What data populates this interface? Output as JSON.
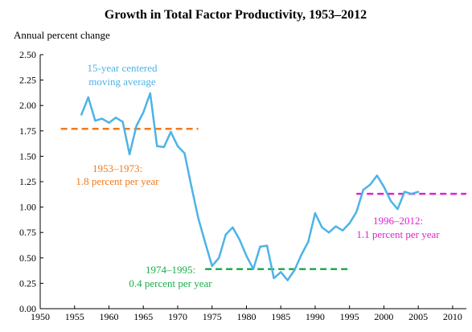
{
  "chart_data": {
    "type": "line",
    "title": "Growth in Total Factor Productivity, 1953–2012",
    "ylabel": "Annual percent change",
    "xlabel": "",
    "xlim": [
      1950,
      2012
    ],
    "ylim": [
      0,
      2.5
    ],
    "xticks": [
      "1950",
      "1955",
      "1960",
      "1965",
      "1970",
      "1975",
      "1980",
      "1985",
      "1990",
      "1995",
      "2000",
      "2005",
      "2010"
    ],
    "yticks": [
      "0.00",
      "0.25",
      "0.50",
      "0.75",
      "1.00",
      "1.25",
      "1.50",
      "1.75",
      "2.00",
      "2.25",
      "2.50"
    ],
    "grid": false,
    "series": [
      {
        "name": "15-year centered moving average",
        "color": "#4db3e6",
        "x": [
          1956,
          1957,
          1958,
          1959,
          1960,
          1961,
          1962,
          1963,
          1964,
          1965,
          1966,
          1967,
          1968,
          1969,
          1970,
          1971,
          1972,
          1973,
          1974,
          1975,
          1976,
          1977,
          1978,
          1979,
          1980,
          1981,
          1982,
          1983,
          1984,
          1985,
          1986,
          1987,
          1988,
          1989,
          1990,
          1991,
          1992,
          1993,
          1994,
          1995,
          1996,
          1997,
          1998,
          1999,
          2000,
          2001,
          2002,
          2003,
          2004,
          2005
        ],
        "y": [
          1.91,
          2.08,
          1.85,
          1.87,
          1.83,
          1.88,
          1.84,
          1.52,
          1.8,
          1.93,
          2.12,
          1.6,
          1.59,
          1.74,
          1.6,
          1.53,
          1.2,
          0.89,
          0.65,
          0.42,
          0.5,
          0.73,
          0.8,
          0.68,
          0.52,
          0.39,
          0.61,
          0.62,
          0.3,
          0.36,
          0.28,
          0.38,
          0.53,
          0.66,
          0.94,
          0.8,
          0.75,
          0.81,
          0.77,
          0.84,
          0.95,
          1.17,
          1.22,
          1.31,
          1.2,
          1.06,
          0.98,
          1.15,
          1.13,
          1.15
        ]
      }
    ],
    "reference_lines": [
      {
        "label_line1": "1953–1973:",
        "label_line2": "1.8 percent per year",
        "value": 1.77,
        "x_start": 1953,
        "x_end": 1973,
        "color": "#f07a1a"
      },
      {
        "label_line1": "1974–1995:",
        "label_line2": "0.4 percent per year",
        "value": 0.39,
        "x_start": 1974,
        "x_end": 1995,
        "color": "#1aae4a"
      },
      {
        "label_line1": "1996–2012:",
        "label_line2": "1.1 percent per year",
        "value": 1.13,
        "x_start": 1996,
        "x_end": 2012,
        "color": "#e020d0"
      }
    ],
    "series_label_line1": "15-year centered",
    "series_label_line2": "moving average"
  }
}
